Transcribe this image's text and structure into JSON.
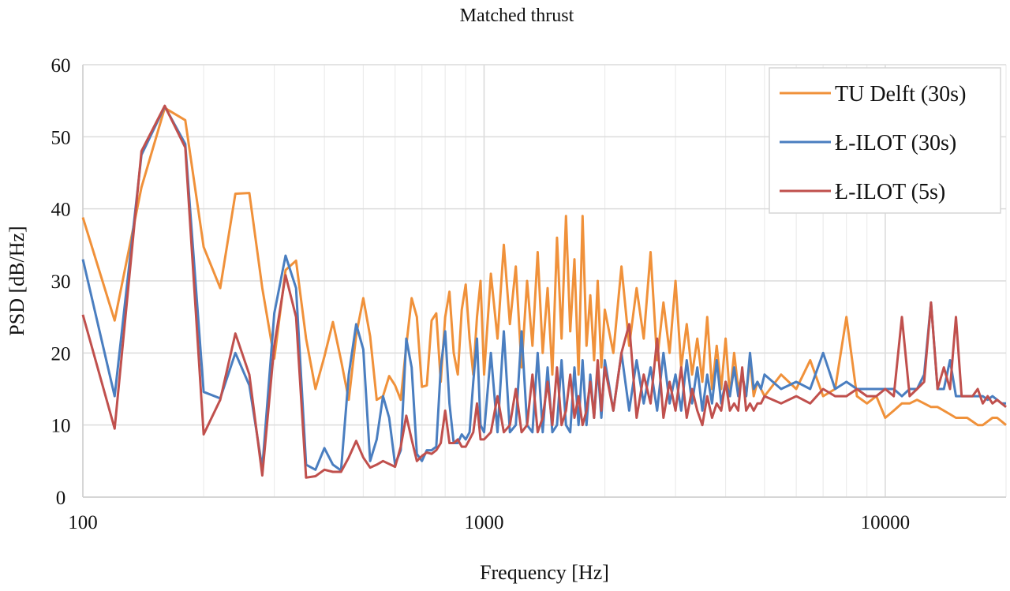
{
  "chart_data": {
    "type": "line",
    "title": "Matched thrust",
    "xlabel": "Frequency [Hz]",
    "ylabel": "PSD [dB/Hz]",
    "xscale": "log",
    "xlim": [
      100,
      20000
    ],
    "ylim": [
      0,
      60
    ],
    "xticks": [
      100,
      1000,
      10000
    ],
    "xtick_labels": [
      "100",
      "1000",
      "10000"
    ],
    "yticks": [
      0,
      10,
      20,
      30,
      40,
      50,
      60
    ],
    "ytick_labels": [
      "0",
      "10",
      "20",
      "30",
      "40",
      "50",
      "60"
    ],
    "grid": true,
    "legend_position": "top-right",
    "x": [
      100,
      120,
      140,
      160,
      180,
      200,
      220,
      240,
      260,
      280,
      300,
      320,
      340,
      360,
      380,
      400,
      420,
      440,
      460,
      480,
      500,
      520,
      540,
      560,
      580,
      600,
      620,
      640,
      660,
      680,
      700,
      720,
      740,
      760,
      780,
      800,
      820,
      840,
      860,
      880,
      900,
      920,
      940,
      960,
      980,
      1000,
      1040,
      1080,
      1120,
      1160,
      1200,
      1240,
      1280,
      1320,
      1360,
      1400,
      1440,
      1480,
      1520,
      1560,
      1600,
      1640,
      1680,
      1720,
      1760,
      1800,
      1840,
      1880,
      1920,
      1960,
      2000,
      2100,
      2200,
      2300,
      2400,
      2500,
      2600,
      2700,
      2800,
      2900,
      3000,
      3100,
      3200,
      3300,
      3400,
      3500,
      3600,
      3700,
      3800,
      3900,
      4000,
      4100,
      4200,
      4300,
      4400,
      4500,
      4600,
      4700,
      4800,
      4900,
      5000,
      5500,
      6000,
      6500,
      7000,
      7500,
      8000,
      8500,
      9000,
      9500,
      10000,
      10500,
      11000,
      11500,
      12000,
      12500,
      13000,
      13500,
      14000,
      14500,
      15000,
      15500,
      16000,
      16500,
      17000,
      17500,
      18000,
      18500,
      19000,
      19500,
      20000
    ],
    "series": [
      {
        "name": "TU Delft (30s)",
        "color": "#F0913A",
        "values": [
          38.8,
          24.5,
          43,
          54,
          52.3,
          34.7,
          29,
          42.1,
          42.2,
          29,
          19.2,
          31.5,
          32.8,
          22,
          15,
          19.5,
          24.3,
          19,
          13.5,
          22.5,
          27.6,
          22.3,
          13.5,
          14,
          16.8,
          15.5,
          13.5,
          21,
          27.6,
          25,
          15.3,
          15.5,
          24.5,
          25.5,
          16,
          25,
          28.5,
          20,
          17,
          26,
          29.5,
          22,
          17,
          25,
          30,
          17,
          31,
          22,
          35,
          24,
          32,
          18,
          30,
          21,
          34,
          20,
          29,
          17,
          36,
          22,
          39,
          23,
          33,
          17,
          39,
          21,
          28,
          19,
          30,
          18,
          26,
          20,
          32,
          21,
          29,
          22,
          34,
          19,
          27,
          20,
          30,
          18,
          24,
          17,
          22,
          16,
          25,
          15,
          21,
          15,
          22,
          14,
          20,
          15,
          17,
          14,
          19,
          14,
          16,
          15,
          14,
          17,
          15,
          19,
          14,
          15,
          25,
          14,
          13,
          14,
          11,
          12,
          13,
          13,
          13.5,
          13,
          12.5,
          12.5,
          12,
          11.5,
          11,
          11,
          11,
          10.5,
          10,
          10,
          10.5,
          11,
          11,
          10.5,
          10
        ]
      },
      {
        "name": "Ł-ILOT (30s)",
        "color": "#4A7EC0",
        "values": [
          33,
          14,
          47.5,
          54.2,
          49,
          14.6,
          13.7,
          20,
          15.5,
          4,
          25.5,
          33.5,
          29,
          4.5,
          3.8,
          6.8,
          4.5,
          3.7,
          17,
          24,
          20.5,
          5,
          8,
          14,
          11,
          4.5,
          6.5,
          22,
          18,
          6,
          5,
          6.5,
          6.5,
          7,
          18,
          23,
          13,
          7.5,
          7.5,
          8.7,
          8,
          9,
          16,
          22,
          10,
          9,
          20,
          9,
          23,
          9,
          10,
          23,
          10,
          9,
          20,
          9,
          18,
          9,
          10,
          19,
          10,
          9,
          18,
          10,
          19,
          10,
          17,
          11,
          18,
          11,
          19,
          12,
          20,
          12,
          19,
          13,
          18,
          12,
          20,
          13,
          17,
          12,
          19,
          13,
          18,
          12,
          17,
          13,
          19,
          13,
          16,
          14,
          18,
          14,
          17,
          14,
          20,
          15,
          16,
          15,
          17,
          15,
          16,
          15,
          20,
          15,
          16,
          15,
          15,
          15,
          15,
          15,
          14,
          15,
          15,
          17,
          27,
          15,
          15,
          19,
          14,
          14,
          14,
          14,
          14,
          14,
          13.5,
          14,
          13.5,
          13,
          13
        ]
      },
      {
        "name": "Ł-ILOT (5s)",
        "color": "#C0504D",
        "values": [
          25.3,
          9.5,
          48,
          54.3,
          48.5,
          8.7,
          13.5,
          22.7,
          17,
          3,
          21,
          30.8,
          25,
          2.7,
          2.9,
          3.8,
          3.5,
          3.5,
          5.5,
          7.8,
          5.5,
          4.1,
          4.5,
          5,
          4.6,
          4.2,
          7,
          11.3,
          8,
          5,
          5.7,
          6.2,
          6,
          6.5,
          7.5,
          12,
          7.5,
          7.5,
          8,
          7,
          7,
          8,
          9,
          13,
          8,
          8,
          9,
          14,
          9,
          10,
          15,
          9,
          10,
          17,
          9,
          11,
          16,
          10,
          18,
          10,
          12,
          17,
          11,
          14,
          10,
          12,
          16,
          11,
          19,
          12,
          18,
          12,
          20,
          24,
          11,
          17,
          13,
          22,
          11,
          16,
          12,
          18,
          11,
          15,
          12,
          10,
          14,
          11,
          13,
          12,
          16,
          12,
          13,
          12,
          18,
          12,
          13,
          12,
          13,
          13,
          14,
          13,
          14,
          13,
          15,
          14,
          14,
          15,
          14,
          14,
          15,
          14,
          25,
          14,
          15,
          16,
          27,
          15,
          18,
          15,
          25,
          14,
          14,
          14,
          15,
          13,
          14,
          13,
          13.5,
          13,
          12.5
        ]
      }
    ]
  }
}
